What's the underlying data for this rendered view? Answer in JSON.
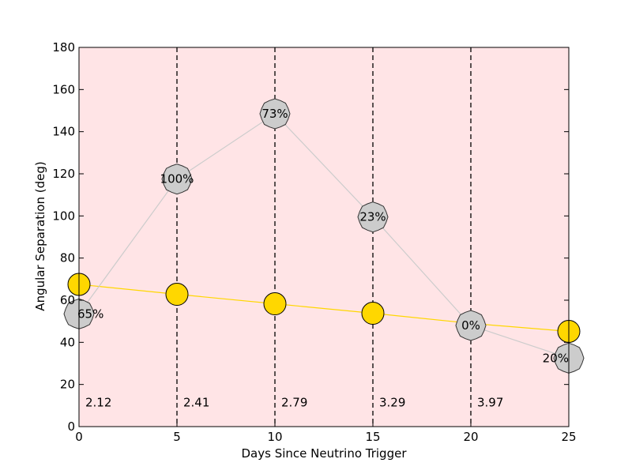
{
  "chart_data": {
    "type": "scatter",
    "xlabel": "Days Since Neutrino Trigger",
    "ylabel": "Angular Separation (deg)",
    "xlim": [
      0,
      25
    ],
    "ylim": [
      0,
      180
    ],
    "xticks": [
      "0",
      "5",
      "10",
      "15",
      "20",
      "25"
    ],
    "yticks": [
      "0",
      "20",
      "40",
      "60",
      "80",
      "100",
      "120",
      "140",
      "160",
      "180"
    ],
    "grid": false,
    "legend": "none",
    "background_color": "#ffe4e6",
    "series": [
      {
        "marker": "sun",
        "color": "#ffd700",
        "line_color": "#ffd700",
        "x": [
          0,
          5,
          10,
          15,
          20,
          25
        ],
        "y": [
          67.5,
          62.8,
          58.3,
          53.8,
          49.0,
          45.2
        ]
      },
      {
        "marker": "moon",
        "color": "#cccccc",
        "line_color": "#cccccc",
        "x": [
          0,
          5,
          10,
          15,
          20,
          25
        ],
        "y": [
          53.5,
          117.5,
          148.5,
          99.5,
          48.0,
          32.5
        ],
        "labels": [
          "65%",
          "100%",
          "73%",
          "23%",
          "0%",
          "20%"
        ]
      }
    ],
    "vertical_lines": [
      5,
      10,
      15,
      20
    ],
    "annotations": [
      {
        "x": 0,
        "y": 11,
        "text": "2.12"
      },
      {
        "x": 5,
        "y": 11,
        "text": "2.41"
      },
      {
        "x": 10,
        "y": 11,
        "text": "2.79"
      },
      {
        "x": 15,
        "y": 11,
        "text": "3.29"
      },
      {
        "x": 20,
        "y": 11,
        "text": "3.97"
      }
    ]
  }
}
